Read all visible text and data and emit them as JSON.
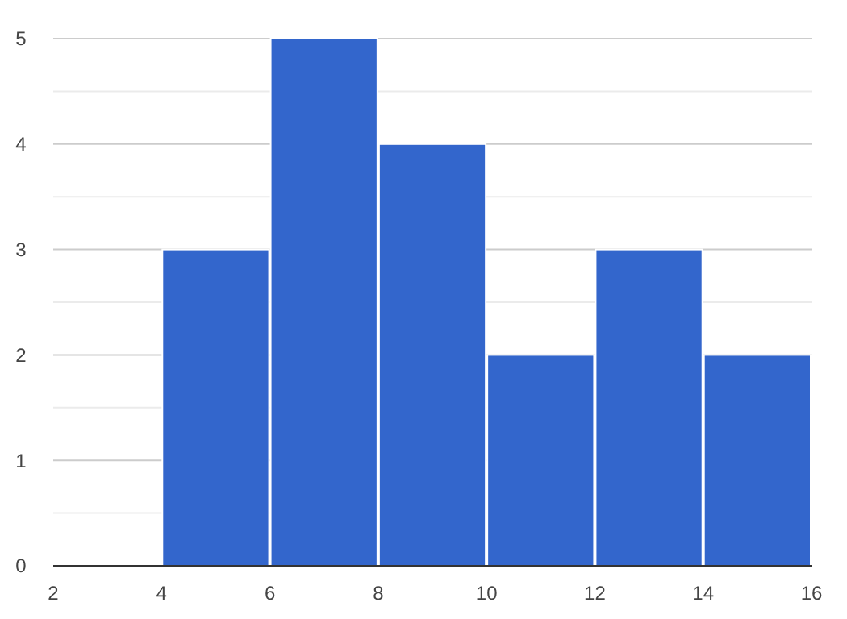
{
  "chart_data": {
    "type": "histogram",
    "bins": [
      2,
      4,
      6,
      8,
      10,
      12,
      14,
      16
    ],
    "values": [
      0,
      3,
      5,
      4,
      2,
      3,
      2
    ],
    "color": "#3366cc",
    "xlim": [
      2,
      16
    ],
    "xticks": [
      2,
      4,
      6,
      8,
      10,
      12,
      14,
      16
    ],
    "ylim": [
      0,
      5
    ],
    "yticks": [
      0,
      1,
      2,
      3,
      4,
      5
    ],
    "grid": "y"
  }
}
